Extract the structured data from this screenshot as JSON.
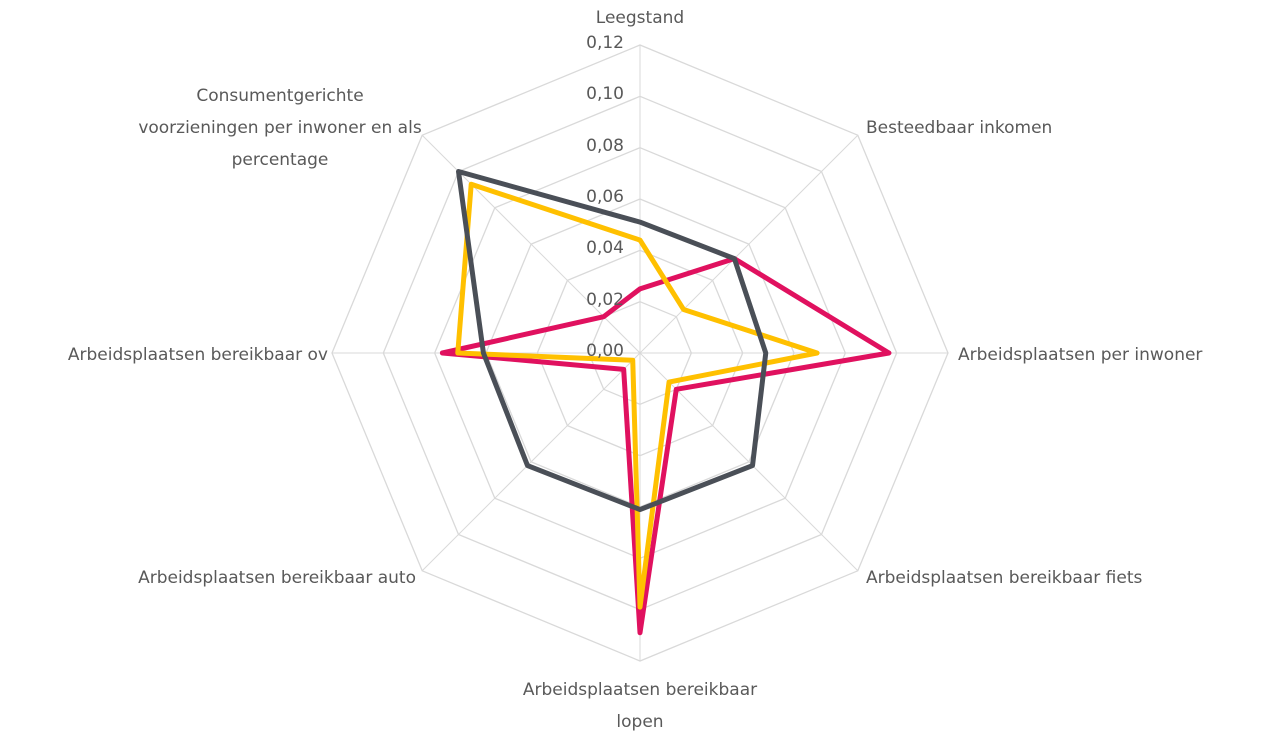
{
  "chart_data": {
    "type": "radar",
    "categories": [
      "Leegstand",
      "Besteedbaar inkomen",
      "Arbeidsplaatsen per inwoner",
      "Arbeidsplaatsen bereikbaar fiets",
      "Arbeidsplaatsen bereikbaar\nlopen",
      "Arbeidsplaatsen bereikbaar auto",
      "Arbeidsplaatsen bereikbaar ov",
      "Consumentgerichte\nvoorzieningen per inwoner en als\npercentage"
    ],
    "series": [
      {
        "color": "#e0115f",
        "values": [
          0.025,
          0.052,
          0.097,
          0.02,
          0.109,
          0.009,
          0.077,
          0.02
        ]
      },
      {
        "color": "#ffc000",
        "values": [
          0.044,
          0.024,
          0.069,
          0.016,
          0.099,
          0.004,
          0.071,
          0.093
        ]
      },
      {
        "color": "#4a4f57",
        "values": [
          0.051,
          0.052,
          0.049,
          0.062,
          0.061,
          0.062,
          0.061,
          0.1
        ]
      }
    ],
    "ylim": [
      0,
      0.12
    ],
    "yticks": [
      {
        "value": 0,
        "label": "0,00"
      },
      {
        "value": 0.02,
        "label": "0,02"
      },
      {
        "value": 0.04,
        "label": "0,04"
      },
      {
        "value": 0.06,
        "label": "0,06"
      },
      {
        "value": 0.08,
        "label": "0,08"
      },
      {
        "value": 0.1,
        "label": "0,10"
      },
      {
        "value": 0.12,
        "label": "0,12"
      }
    ],
    "grid": true
  }
}
